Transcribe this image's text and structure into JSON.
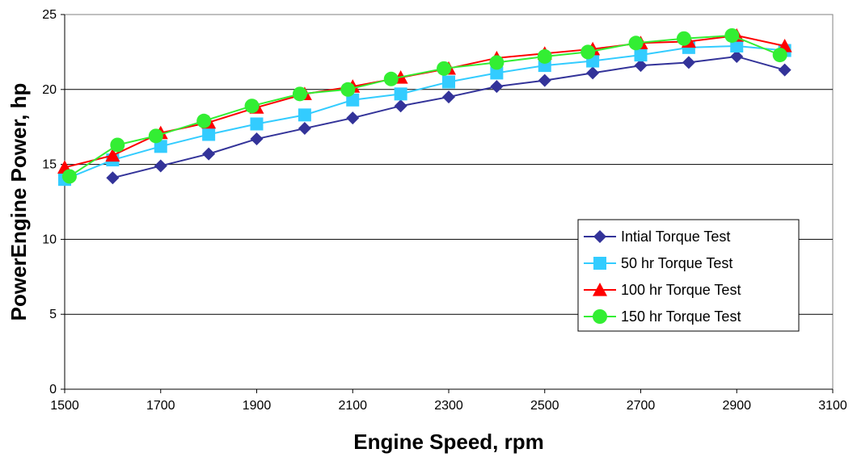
{
  "chart_data": {
    "type": "line",
    "title": "",
    "xlabel": "Engine Speed, rpm",
    "ylabel": "PowerEngine Power, hp",
    "xlim": [
      1500,
      3100
    ],
    "ylim": [
      0,
      25
    ],
    "x_ticks": [
      1500,
      1700,
      1900,
      2100,
      2300,
      2500,
      2700,
      2900,
      3100
    ],
    "y_ticks": [
      0,
      5,
      10,
      15,
      20,
      25
    ],
    "grid": "horizontal",
    "legend_position": "right",
    "series": [
      {
        "name": "Intial Torque Test",
        "color": "#333399",
        "marker": "diamond",
        "points": [
          [
            1600,
            14.1
          ],
          [
            1700,
            14.9
          ],
          [
            1800,
            15.7
          ],
          [
            1900,
            16.7
          ],
          [
            2000,
            17.4
          ],
          [
            2100,
            18.1
          ],
          [
            2200,
            18.9
          ],
          [
            2300,
            19.5
          ],
          [
            2400,
            20.2
          ],
          [
            2500,
            20.6
          ],
          [
            2600,
            21.1
          ],
          [
            2700,
            21.6
          ],
          [
            2800,
            21.8
          ],
          [
            2900,
            22.2
          ],
          [
            3000,
            21.3
          ]
        ]
      },
      {
        "name": "50 hr Torque Test",
        "color": "#33ccff",
        "marker": "square",
        "points": [
          [
            1500,
            14.0
          ],
          [
            1600,
            15.3
          ],
          [
            1700,
            16.2
          ],
          [
            1800,
            17.0
          ],
          [
            1900,
            17.7
          ],
          [
            2000,
            18.3
          ],
          [
            2100,
            19.3
          ],
          [
            2200,
            19.7
          ],
          [
            2300,
            20.5
          ],
          [
            2400,
            21.1
          ],
          [
            2500,
            21.6
          ],
          [
            2600,
            21.9
          ],
          [
            2700,
            22.3
          ],
          [
            2800,
            22.8
          ],
          [
            2900,
            22.9
          ],
          [
            3000,
            22.6
          ]
        ]
      },
      {
        "name": "100 hr Torque Test",
        "color": "#ff0000",
        "marker": "triangle",
        "points": [
          [
            1500,
            14.8
          ],
          [
            1600,
            15.6
          ],
          [
            1700,
            17.1
          ],
          [
            1800,
            17.8
          ],
          [
            1900,
            18.8
          ],
          [
            2000,
            19.7
          ],
          [
            2100,
            20.2
          ],
          [
            2200,
            20.8
          ],
          [
            2300,
            21.4
          ],
          [
            2400,
            22.1
          ],
          [
            2500,
            22.4
          ],
          [
            2600,
            22.7
          ],
          [
            2700,
            23.1
          ],
          [
            2800,
            23.2
          ],
          [
            2900,
            23.6
          ],
          [
            3000,
            22.9
          ]
        ]
      },
      {
        "name": "150 hr Torque Test",
        "color": "#33ee33",
        "marker": "circle",
        "points": [
          [
            1510,
            14.2
          ],
          [
            1610,
            16.3
          ],
          [
            1690,
            16.9
          ],
          [
            1790,
            17.9
          ],
          [
            1890,
            18.9
          ],
          [
            1990,
            19.7
          ],
          [
            2090,
            20.0
          ],
          [
            2180,
            20.7
          ],
          [
            2290,
            21.4
          ],
          [
            2400,
            21.8
          ],
          [
            2500,
            22.2
          ],
          [
            2590,
            22.5
          ],
          [
            2690,
            23.1
          ],
          [
            2790,
            23.4
          ],
          [
            2890,
            23.6
          ],
          [
            2990,
            22.3
          ]
        ]
      }
    ]
  }
}
